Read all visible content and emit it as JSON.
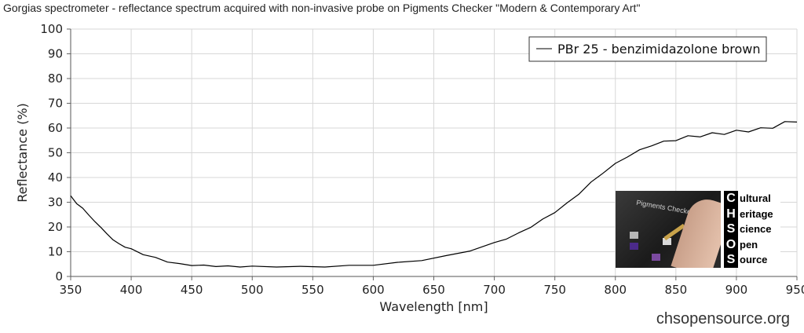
{
  "chart_data": {
    "type": "line",
    "title": "Gorgias spectrometer - reflectance spectrum acquired with non-invasive probe on Pigments Checker \"Modern & Contemporary Art\"",
    "xlabel": "Wavelength [nm]",
    "ylabel": "Reflectance (%)",
    "xlim": [
      350,
      950
    ],
    "ylim": [
      0,
      100
    ],
    "x_ticks": [
      "350",
      "400",
      "450",
      "500",
      "550",
      "600",
      "650",
      "700",
      "750",
      "800",
      "850",
      "900",
      "950"
    ],
    "y_ticks": [
      "0",
      "10",
      "20",
      "30",
      "40",
      "50",
      "60",
      "70",
      "80",
      "90",
      "100"
    ],
    "grid": true,
    "legend_position": "top-right",
    "series": [
      {
        "name": "PBr 25 - benzimidazolone brown",
        "color": "#000000",
        "x": [
          350,
          355,
          360,
          365,
          370,
          375,
          380,
          385,
          390,
          395,
          400,
          410,
          420,
          430,
          440,
          450,
          460,
          470,
          480,
          490,
          500,
          520,
          540,
          560,
          580,
          600,
          620,
          640,
          660,
          680,
          700,
          710,
          720,
          730,
          740,
          750,
          760,
          770,
          780,
          790,
          800,
          810,
          820,
          830,
          840,
          850,
          860,
          870,
          880,
          890,
          900,
          910,
          920,
          930,
          940,
          950
        ],
        "y": [
          32,
          30,
          27,
          25,
          22,
          20,
          17,
          15,
          13,
          12,
          11,
          9,
          7.5,
          6,
          5,
          4.6,
          4.4,
          4.2,
          4.1,
          4,
          4,
          4,
          3.9,
          4,
          4.3,
          4.7,
          5.5,
          6.6,
          8.2,
          10.5,
          13.5,
          15.3,
          17.4,
          20,
          23,
          26,
          29.5,
          33.5,
          38,
          42,
          45.5,
          48.5,
          51,
          53,
          54.5,
          55.5,
          56.3,
          57,
          57.5,
          58,
          58.5,
          59,
          59.5,
          60.5,
          62,
          63
        ]
      }
    ]
  },
  "logo": {
    "letters": [
      "C",
      "H",
      "S",
      "O",
      "S"
    ],
    "words": [
      "ultural",
      "eritage",
      "cience",
      "pen",
      "ource"
    ],
    "photo_caption": "Pigments Checker"
  },
  "watermark": "chsopensource.org"
}
